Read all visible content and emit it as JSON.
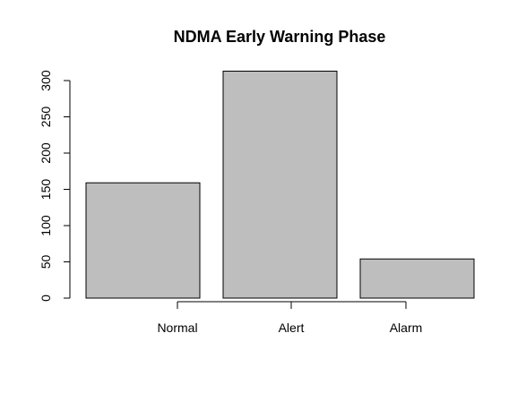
{
  "chart_data": {
    "type": "bar",
    "title": "NDMA Early Warning Phase",
    "xlabel": "",
    "ylabel": "",
    "categories": [
      "Normal",
      "Alert",
      "Alarm"
    ],
    "values": [
      159,
      313,
      54
    ],
    "ylim": [
      0,
      300
    ],
    "yticks": [
      0,
      50,
      100,
      150,
      200,
      250,
      300
    ],
    "grid": false,
    "legend": "none",
    "bar_color": "#bebebe",
    "bar_border_color": "#000000"
  }
}
